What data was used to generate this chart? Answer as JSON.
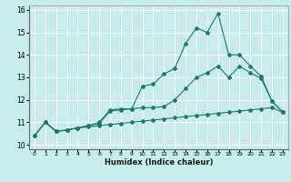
{
  "title": "",
  "xlabel": "Humidex (Indice chaleur)",
  "ylabel": "",
  "bg_color": "#c8ecec",
  "line_color": "#1a7a6e",
  "grid_color": "#ffffff",
  "xlim": [
    -0.5,
    23.5
  ],
  "ylim": [
    9.8,
    16.2
  ],
  "yticks": [
    10,
    11,
    12,
    13,
    14,
    15,
    16
  ],
  "xticks": [
    0,
    1,
    2,
    3,
    4,
    5,
    6,
    7,
    8,
    9,
    10,
    11,
    12,
    13,
    14,
    15,
    16,
    17,
    18,
    19,
    20,
    21,
    22,
    23
  ],
  "series1_x": [
    0,
    1,
    2,
    3,
    4,
    5,
    6,
    7,
    8,
    9,
    10,
    11,
    12,
    13,
    14,
    15,
    16,
    17,
    18,
    19,
    20,
    21,
    22,
    23
  ],
  "series1_y": [
    10.4,
    11.0,
    10.6,
    10.65,
    10.75,
    10.8,
    10.85,
    10.9,
    10.95,
    11.0,
    11.05,
    11.1,
    11.15,
    11.2,
    11.25,
    11.3,
    11.35,
    11.4,
    11.45,
    11.5,
    11.55,
    11.6,
    11.65,
    11.45
  ],
  "series2_x": [
    0,
    1,
    2,
    3,
    4,
    5,
    6,
    7,
    8,
    9,
    10,
    11,
    12,
    13,
    14,
    15,
    16,
    17,
    18,
    19,
    20,
    21,
    22,
    23
  ],
  "series2_y": [
    10.4,
    11.0,
    10.6,
    10.65,
    10.75,
    10.85,
    10.95,
    11.5,
    11.55,
    11.6,
    12.6,
    12.7,
    13.15,
    13.4,
    14.5,
    15.2,
    15.0,
    15.85,
    14.0,
    14.0,
    13.5,
    13.05,
    11.95,
    11.45
  ],
  "series3_x": [
    0,
    1,
    2,
    3,
    4,
    5,
    6,
    7,
    8,
    9,
    10,
    11,
    12,
    13,
    14,
    15,
    16,
    17,
    18,
    19,
    20,
    21,
    22,
    23
  ],
  "series3_y": [
    10.4,
    11.0,
    10.6,
    10.65,
    10.75,
    10.85,
    11.0,
    11.55,
    11.6,
    11.6,
    11.65,
    11.65,
    11.7,
    12.0,
    12.5,
    13.0,
    13.2,
    13.5,
    13.0,
    13.5,
    13.2,
    12.95,
    11.95,
    11.45
  ]
}
